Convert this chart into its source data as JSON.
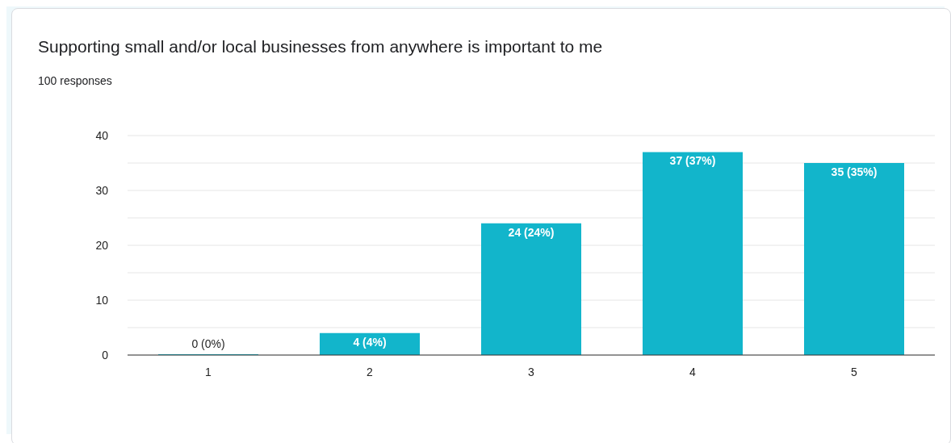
{
  "chart_data": {
    "type": "bar",
    "title": "Supporting small and/or local businesses from anywhere is important to me",
    "subtitle": "100 responses",
    "categories": [
      "1",
      "2",
      "3",
      "4",
      "5"
    ],
    "values": [
      0,
      4,
      24,
      37,
      35
    ],
    "value_labels": [
      "0 (0%)",
      "4 (4%)",
      "24 (24%)",
      "37 (37%)",
      "35 (35%)"
    ],
    "color": "#12b5cb",
    "ylim": [
      0,
      40
    ],
    "yticks": [
      0,
      {
        "value": 5,
        "label": null
      },
      10,
      {
        "value": 15,
        "label": null
      },
      20,
      {
        "value": 25,
        "label": null
      },
      30,
      {
        "value": 35,
        "label": null
      },
      40
    ],
    "grid": "y",
    "legend": false
  }
}
